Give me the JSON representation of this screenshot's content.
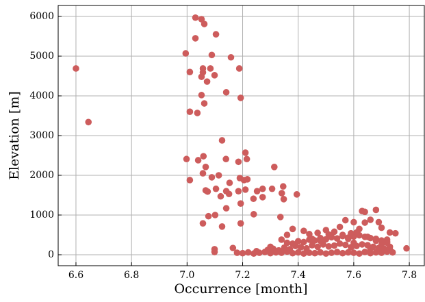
{
  "chart_data": {
    "type": "scatter",
    "xlabel": "Occurrence [month]",
    "ylabel": "Elevation [m]",
    "color": "#cd5c5c",
    "grid": true,
    "xlim": [
      6.536,
      7.854
    ],
    "ylim": [
      -276,
      6276
    ],
    "xticks": [
      6.6,
      6.8,
      {
        "value": 7,
        "label": "7.0"
      },
      7.2,
      7.4,
      7.6,
      7.8
    ],
    "yticks": [
      0,
      1000,
      2000,
      3000,
      4000,
      5000,
      6000
    ],
    "x": [
      6.6,
      6.645,
      7.03,
      7.052,
      7.062,
      7.104,
      7.03,
      6.995,
      7.089,
      7.158,
      7.01,
      7.057,
      7.057,
      7.084,
      7.188,
      7.099,
      7.052,
      7.072,
      7.141,
      7.052,
      7.193,
      7.062,
      7.01,
      7.037,
      7.126,
      7.21,
      6.998,
      7.04,
      7.059,
      7.14,
      7.185,
      7.215,
      7.067,
      7.314,
      7.057,
      7.114,
      7.01,
      7.089,
      7.19,
      7.205,
      7.217,
      7.153,
      7.067,
      7.074,
      7.104,
      7.141,
      7.185,
      7.21,
      7.252,
      7.272,
      7.306,
      7.346,
      7.341,
      7.348,
      7.121,
      7.151,
      7.395,
      7.239,
      7.272,
      7.193,
      7.141,
      7.101,
      7.24,
      7.077,
      7.336,
      7.057,
      7.193,
      7.126,
      7.099,
      7.099,
      7.165,
      7.79,
      7.18,
      7.2,
      7.22,
      7.24,
      7.26,
      7.28,
      7.3,
      7.32,
      7.34,
      7.36,
      7.38,
      7.4,
      7.42,
      7.44,
      7.46,
      7.48,
      7.5,
      7.52,
      7.54,
      7.56,
      7.58,
      7.6,
      7.62,
      7.64,
      7.66,
      7.68,
      7.7,
      7.72,
      7.74,
      7.25,
      7.29,
      7.31,
      7.33,
      7.35,
      7.37,
      7.39,
      7.41,
      7.43,
      7.45,
      7.47,
      7.49,
      7.51,
      7.53,
      7.55,
      7.57,
      7.59,
      7.61,
      7.63,
      7.65,
      7.67,
      7.69,
      7.71,
      7.73,
      7.36,
      7.38,
      7.4,
      7.42,
      7.44,
      7.46,
      7.48,
      7.5,
      7.52,
      7.54,
      7.56,
      7.58,
      7.6,
      7.62,
      7.64,
      7.66,
      7.68,
      7.7,
      7.72,
      7.38,
      7.42,
      7.5,
      7.55,
      7.57,
      7.6,
      7.63,
      7.64,
      7.68,
      7.66,
      7.69,
      7.64,
      7.62,
      7.7,
      7.73,
      7.75,
      7.72,
      7.73,
      7.72,
      7.36,
      7.34,
      7.3,
      7.45,
      7.48,
      7.52,
      7.56,
      7.58,
      7.6,
      7.65,
      7.68,
      7.7,
      7.66,
      7.47,
      7.53,
      7.59,
      7.61,
      7.44,
      7.51
    ],
    "y": [
      4690,
      3340,
      5970,
      5930,
      5810,
      5550,
      5450,
      5070,
      5030,
      4970,
      4600,
      4690,
      4590,
      4690,
      4690,
      4520,
      4480,
      4360,
      4090,
      4020,
      3950,
      3810,
      3600,
      3570,
      2880,
      2570,
      2410,
      2380,
      2480,
      2410,
      2340,
      2410,
      2210,
      2210,
      2050,
      2000,
      1880,
      1950,
      1930,
      1880,
      1900,
      1810,
      1620,
      1590,
      1660,
      1600,
      1600,
      1640,
      1600,
      1660,
      1660,
      1720,
      1550,
      1400,
      1470,
      1530,
      1520,
      1410,
      1450,
      1290,
      1170,
      1000,
      1020,
      970,
      950,
      790,
      790,
      710,
      140,
      70,
      170,
      160,
      50,
      40,
      60,
      30,
      50,
      70,
      40,
      60,
      50,
      80,
      40,
      60,
      30,
      50,
      40,
      60,
      30,
      50,
      70,
      40,
      60,
      50,
      30,
      70,
      40,
      60,
      50,
      80,
      60,
      90,
      120,
      150,
      110,
      180,
      140,
      220,
      190,
      160,
      240,
      200,
      260,
      210,
      230,
      280,
      250,
      190,
      220,
      260,
      240,
      200,
      170,
      150,
      130,
      300,
      280,
      340,
      320,
      380,
      360,
      420,
      390,
      440,
      410,
      470,
      430,
      460,
      490,
      450,
      420,
      400,
      360,
      330,
      650,
      600,
      620,
      700,
      870,
      820,
      1100,
      1080,
      1130,
      880,
      820,
      810,
      650,
      680,
      560,
      540,
      300,
      200,
      380,
      500,
      380,
      200,
      400,
      350,
      450,
      500,
      400,
      300,
      450,
      350,
      250,
      150,
      550,
      580,
      540,
      560,
      520,
      510
    ]
  }
}
